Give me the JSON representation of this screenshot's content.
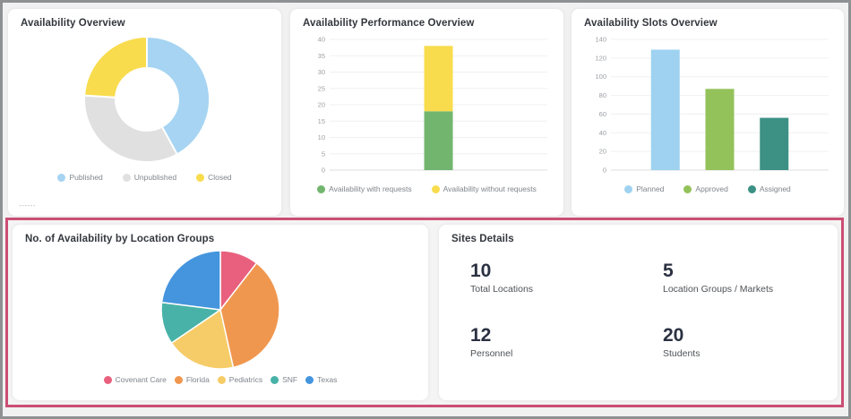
{
  "colors": {
    "page_background": "#f1f1f2",
    "frame_border": "#8e9092",
    "card_background": "#ffffff",
    "highlight_border": "#cc4e75",
    "title_text": "#33373d",
    "axis_text": "#9b9fa4",
    "legend_text": "#7f858b",
    "stat_number_text": "#2b3142"
  },
  "chart_data": [
    {
      "type": "donut",
      "title": "Availability Overview",
      "labels": [
        "Published",
        "Unpublished",
        "Closed"
      ],
      "values_pct_est": [
        42,
        34,
        24
      ],
      "colors": [
        "#a6d4f2",
        "#e0e0e0",
        "#f8dc4e"
      ],
      "legend_position": "bottom",
      "footnote": "------"
    },
    {
      "type": "bar",
      "stacked": true,
      "title": "Availability Performance Overview",
      "categories": [
        ""
      ],
      "series": [
        {
          "name": "Availability with requests",
          "values": [
            18
          ],
          "color": "#72b56f"
        },
        {
          "name": "Availability without requests",
          "values": [
            20
          ],
          "color": "#f8dc4e"
        }
      ],
      "ylim": [
        0,
        40
      ],
      "ytick_step": 5,
      "grid": true,
      "legend_position": "bottom"
    },
    {
      "type": "bar",
      "stacked": false,
      "title": "Availability Slots Overview",
      "categories": [
        "Planned",
        "Approved",
        "Assigned"
      ],
      "values": [
        129,
        87,
        56
      ],
      "colors": [
        "#9ed2f0",
        "#93c25b",
        "#3c9184"
      ],
      "ylim": [
        0,
        140
      ],
      "ytick_step": 20,
      "grid": true,
      "legend_position": "bottom"
    },
    {
      "type": "pie",
      "title": "No. of Availability by Location Groups",
      "labels": [
        "Covenant Care",
        "Florida",
        "Pediatrics",
        "SNF",
        "Texas"
      ],
      "values_pct_est": [
        10.5,
        36,
        19,
        11.5,
        23
      ],
      "colors": [
        "#e9607e",
        "#f0974f",
        "#f6cc68",
        "#48b2a8",
        "#4495de"
      ],
      "legend_position": "bottom"
    }
  ],
  "sites": {
    "title": "Sites Details",
    "stats": [
      {
        "value": "10",
        "label": "Total Locations"
      },
      {
        "value": "5",
        "label": "Location Groups / Markets"
      },
      {
        "value": "12",
        "label": "Personnel"
      },
      {
        "value": "20",
        "label": "Students"
      }
    ]
  }
}
